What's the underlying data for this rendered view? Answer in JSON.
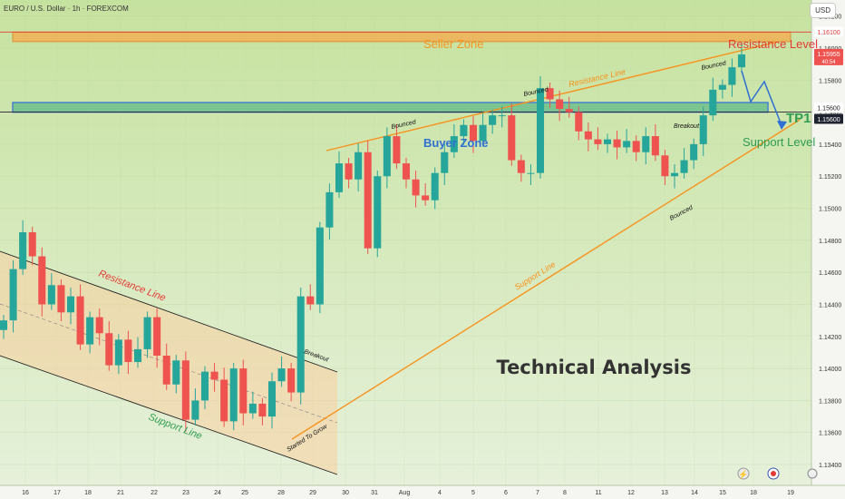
{
  "header": {
    "symbol_title": "EURO / U.S. Dollar · 1h · FOREXCOM",
    "currency": "USD"
  },
  "colors": {
    "background": "#d0e6b4",
    "up": "#26a69a",
    "down": "#ef5350",
    "orange": "#f7931e",
    "blue": "#2f6fd3",
    "green_label": "#2e9c52",
    "red_label": "#e53935"
  },
  "chart_data": {
    "type": "candlestick",
    "title": "Technical Analysis",
    "xlabel": "",
    "ylabel": "",
    "ylim": [
      1.1327,
      1.163
    ],
    "y_ticks": [
      "1.16200",
      "1.16000",
      "1.15800",
      "1.15600",
      "1.15400",
      "1.15200",
      "1.15000",
      "1.14800",
      "1.14600",
      "1.14400",
      "1.14200",
      "1.14000",
      "1.13800",
      "1.13600",
      "1.13400"
    ],
    "x_ticks": [
      "16",
      "17",
      "18",
      "21",
      "22",
      "23",
      "24",
      "25",
      "28",
      "29",
      "30",
      "31",
      "Aug",
      "4",
      "5",
      "6",
      "7",
      "8",
      "11",
      "12",
      "13",
      "14",
      "15",
      "18",
      "19"
    ],
    "price_labels": {
      "resistance": "1.16100",
      "current": "1.15955",
      "current_time": "40:54",
      "support_high": "1.15600",
      "support_low": "1.15600"
    },
    "zones": {
      "seller": {
        "label": "Seller Zone",
        "from": 1.1604,
        "to": 1.161
      },
      "buyer": {
        "label": "Buyer Zone",
        "from": 1.156,
        "to": 1.1566
      }
    },
    "levels": {
      "resistance_label": "Resistance Level",
      "support_label": "Support Level",
      "target_label": "TP1"
    },
    "annotations": [
      "Resistance Line",
      "Support Line",
      "Resistance Line",
      "Support Line",
      "Breakout",
      "Breakout",
      "Started To Grow",
      "Bounced",
      "Bounced",
      "Bounced",
      "Bounced"
    ],
    "trend": [
      1.143,
      1.1462,
      1.1485,
      1.147,
      1.144,
      1.1452,
      1.1435,
      1.1445,
      1.1415,
      1.1432,
      1.1422,
      1.1402,
      1.1418,
      1.1404,
      1.1412,
      1.1432,
      1.1408,
      1.139,
      1.1405,
      1.1368,
      1.138,
      1.1398,
      1.1393,
      1.1367,
      1.14,
      1.1372,
      1.1378,
      1.137,
      1.1392,
      1.14,
      1.1385,
      1.1445,
      1.144,
      1.1488,
      1.151,
      1.1528,
      1.1518,
      1.1535,
      1.1475,
      1.152,
      1.1545,
      1.1528,
      1.1518,
      1.1508,
      1.1505,
      1.1522,
      1.1535,
      1.1545,
      1.1552,
      1.1542,
      1.1552,
      1.1558,
      1.1558,
      1.153,
      1.1522,
      1.1522,
      1.1575,
      1.1568,
      1.1562,
      1.156,
      1.1548,
      1.1543,
      1.154,
      1.1543,
      1.1538,
      1.1542,
      1.1535,
      1.1545,
      1.1533,
      1.152,
      1.1522,
      1.153,
      1.154,
      1.1558,
      1.1574,
      1.1577,
      1.1588,
      1.1596
    ]
  }
}
